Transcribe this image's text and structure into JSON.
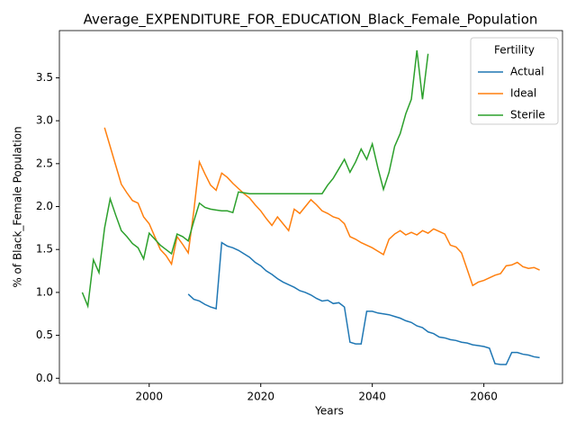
{
  "chart_data": {
    "type": "line",
    "title": "Average_EXPENDITURE_FOR_EDUCATION_Black_Female_Population",
    "xlabel": "Years",
    "ylabel": "% of Black_Female Population",
    "legend_title": "Fertility",
    "legend": "upper right",
    "x": [
      1988,
      1989,
      1990,
      1991,
      1992,
      1993,
      1994,
      1995,
      1996,
      1997,
      1998,
      1999,
      2000,
      2001,
      2002,
      2003,
      2004,
      2005,
      2006,
      2007,
      2008,
      2009,
      2010,
      2011,
      2012,
      2013,
      2014,
      2015,
      2016,
      2017,
      2018,
      2019,
      2020,
      2021,
      2022,
      2023,
      2024,
      2025,
      2026,
      2027,
      2028,
      2029,
      2030,
      2031,
      2032,
      2033,
      2034,
      2035,
      2036,
      2037,
      2038,
      2039,
      2040,
      2041,
      2042,
      2043,
      2044,
      2045,
      2046,
      2047,
      2048,
      2049,
      2050,
      2051,
      2052,
      2053,
      2054,
      2055,
      2056,
      2057,
      2058,
      2059,
      2060,
      2061,
      2062,
      2063,
      2064,
      2065,
      2066,
      2067,
      2068,
      2069,
      2070
    ],
    "series": [
      {
        "name": "Actual",
        "color": "#1f77b4",
        "values": [
          null,
          null,
          null,
          null,
          null,
          null,
          null,
          null,
          null,
          null,
          null,
          null,
          null,
          null,
          null,
          null,
          null,
          null,
          null,
          0.98,
          0.92,
          0.9,
          0.86,
          0.83,
          0.81,
          1.58,
          1.54,
          1.52,
          1.49,
          1.45,
          1.41,
          1.35,
          1.31,
          1.25,
          1.21,
          1.16,
          1.12,
          1.09,
          1.06,
          1.02,
          1.0,
          0.97,
          0.93,
          0.9,
          0.91,
          0.87,
          0.88,
          0.83,
          0.42,
          0.4,
          0.4,
          0.78,
          0.78,
          0.76,
          0.75,
          0.74,
          0.72,
          0.7,
          0.67,
          0.65,
          0.61,
          0.59,
          0.54,
          0.52,
          0.48,
          0.47,
          0.45,
          0.44,
          0.42,
          0.41,
          0.39,
          0.38,
          0.37,
          0.35,
          0.17,
          0.16,
          0.16,
          0.3,
          0.3,
          0.28,
          0.27,
          0.25,
          0.24
        ]
      },
      {
        "name": "Ideal",
        "color": "#ff7f0e",
        "values": [
          null,
          null,
          null,
          null,
          2.92,
          2.7,
          2.48,
          2.26,
          2.16,
          2.07,
          2.04,
          1.88,
          1.8,
          1.65,
          1.5,
          1.43,
          1.33,
          1.65,
          1.56,
          1.46,
          1.95,
          2.52,
          2.38,
          2.25,
          2.19,
          2.39,
          2.34,
          2.27,
          2.21,
          2.15,
          2.1,
          2.02,
          1.95,
          1.86,
          1.78,
          1.88,
          1.8,
          1.72,
          1.97,
          1.92,
          2.0,
          2.08,
          2.02,
          1.95,
          1.92,
          1.88,
          1.86,
          1.8,
          1.65,
          1.62,
          1.58,
          1.55,
          1.52,
          1.48,
          1.44,
          1.62,
          1.68,
          1.72,
          1.67,
          1.7,
          1.67,
          1.72,
          1.69,
          1.74,
          1.71,
          1.68,
          1.55,
          1.53,
          1.46,
          1.27,
          1.08,
          1.12,
          1.14,
          1.17,
          1.2,
          1.22,
          1.31,
          1.32,
          1.35,
          1.3,
          1.28,
          1.29,
          1.26
        ]
      },
      {
        "name": "Sterile",
        "color": "#2ca02c",
        "values": [
          1.0,
          0.84,
          1.38,
          1.23,
          1.75,
          2.09,
          1.9,
          1.72,
          1.65,
          1.57,
          1.52,
          1.39,
          1.69,
          1.62,
          1.55,
          1.5,
          1.45,
          1.68,
          1.65,
          1.6,
          1.83,
          2.04,
          1.99,
          1.97,
          1.96,
          1.95,
          1.95,
          1.93,
          2.17,
          2.16,
          2.15,
          2.15,
          2.15,
          2.15,
          2.15,
          2.15,
          2.15,
          2.15,
          2.15,
          2.15,
          2.15,
          2.15,
          2.15,
          2.15,
          2.25,
          2.33,
          2.44,
          2.55,
          2.4,
          2.52,
          2.67,
          2.55,
          2.73,
          2.45,
          2.2,
          2.4,
          2.7,
          2.85,
          3.08,
          3.25,
          3.82,
          3.25,
          3.78,
          null,
          null,
          null,
          null,
          null,
          null,
          null,
          null,
          null,
          null,
          null,
          null,
          null,
          null,
          null,
          null,
          null,
          null,
          null,
          null
        ]
      }
    ],
    "xlim": [
      1983.9,
      2074.1
    ],
    "xticks": [
      2000,
      2020,
      2040,
      2060
    ],
    "ylim": [
      -0.06,
      4.05
    ],
    "yticks": [
      {
        "value": 0,
        "label": "0.0"
      },
      0.5,
      {
        "value": 1,
        "label": "1.0"
      },
      1.5,
      {
        "value": 2,
        "label": "2.0"
      },
      2.5,
      {
        "value": 3,
        "label": "3.0"
      },
      3.5
    ]
  }
}
